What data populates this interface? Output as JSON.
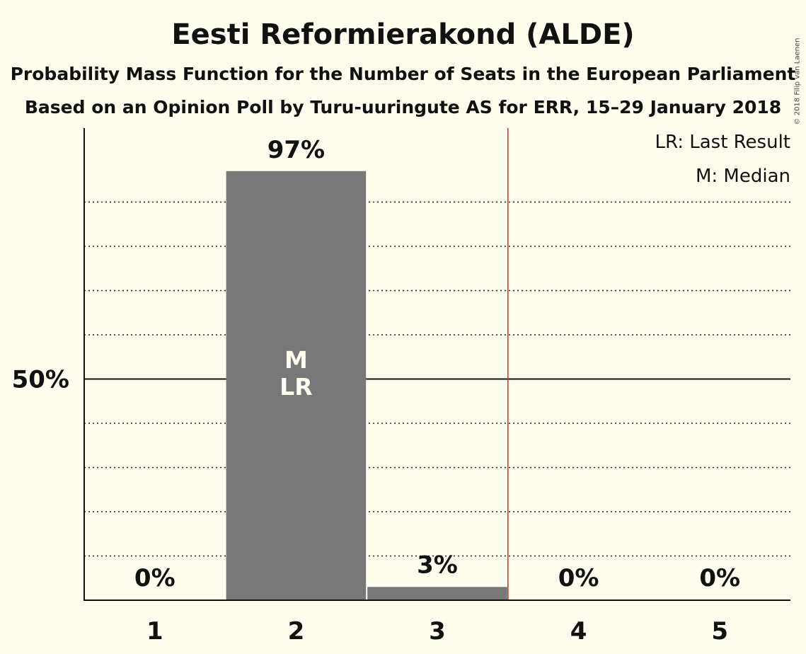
{
  "header": {
    "title": "Eesti Reformierakond (ALDE)",
    "subtitle": "Probability Mass Function for the Number of Seats in the European Parliament",
    "subtitle2": "Based on an Opinion Poll by Turu-uuringute AS for ERR, 15–29 January 2018",
    "copyright": "© 2018 Filip van Laenen"
  },
  "legend": {
    "last_result": "LR: Last Result",
    "median": "M: Median"
  },
  "chart_data": {
    "type": "bar",
    "categories": [
      "1",
      "2",
      "3",
      "4",
      "5"
    ],
    "values": [
      0,
      97,
      3,
      0,
      0
    ],
    "value_labels": [
      "0%",
      "97%",
      "3%",
      "0%",
      "0%"
    ],
    "ylim": [
      0,
      100
    ],
    "y_ticks": [
      {
        "value": 50,
        "label": "50%"
      }
    ],
    "grid": "dotted every 10%",
    "bar_annotations": [
      {
        "category": "2",
        "lines": [
          "M",
          "LR"
        ]
      }
    ],
    "threshold_line": {
      "between": [
        "3",
        "4"
      ],
      "color": "#e8231f"
    },
    "legend_position": "top-right",
    "bar_color": "#787878"
  }
}
